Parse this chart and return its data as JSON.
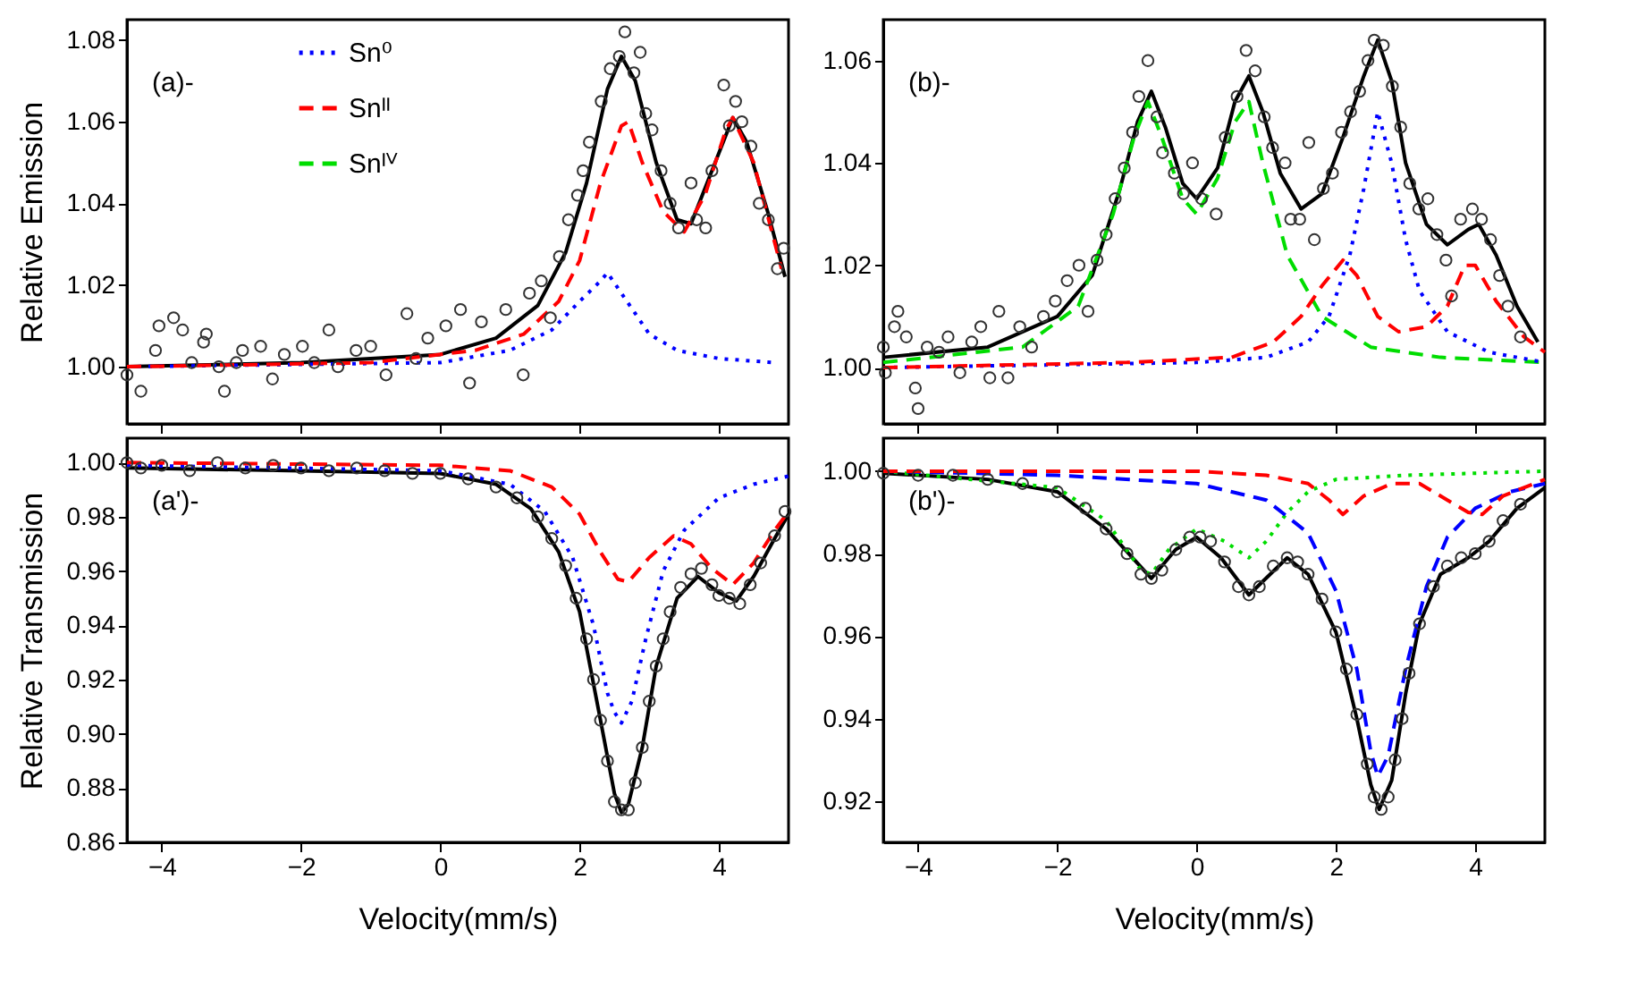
{
  "chart_data": [
    {
      "type": "scatter",
      "annotations": [
        "(a)-"
      ],
      "ylabel": "Relative Emission",
      "xlim": [
        -4.5,
        5
      ],
      "ylim": [
        0.986,
        1.085
      ],
      "xticks": [
        -4,
        -2,
        0,
        2,
        4
      ],
      "yticks": [
        {
          "value": 1,
          "label": "1.00"
        },
        {
          "value": 1.02,
          "label": "1.02"
        },
        {
          "value": 1.04,
          "label": "1.04"
        },
        {
          "value": 1.06,
          "label": "1.06"
        },
        {
          "value": 1.08,
          "label": "1.08"
        }
      ],
      "tick_labels": "y",
      "legend": "top left",
      "series": [
        {
          "marker": "circle",
          "color": "#333333",
          "x": [
            -4.5,
            -4.3,
            -4.09,
            -4.04,
            -3.83,
            -3.7,
            -3.57,
            -3.4,
            -3.36,
            -3.18,
            -3.1,
            -2.93,
            -2.84,
            -2.58,
            -2.41,
            -2.24,
            -1.98,
            -1.81,
            -1.6,
            -1.47,
            -1.21,
            -1.0,
            -0.78,
            -0.48,
            -0.35,
            -0.18,
            0.08,
            0.29,
            0.42,
            0.59,
            0.94,
            1.19,
            1.28,
            1.45,
            1.58,
            1.71,
            1.84,
            1.97,
            2.05,
            2.14,
            2.31,
            2.44,
            2.57,
            2.65,
            2.78,
            2.87,
            2.95,
            3.04,
            3.17,
            3.3,
            3.42,
            3.6,
            3.68,
            3.81,
            3.9,
            4.07,
            4.15,
            4.24,
            4.33,
            4.46,
            4.58,
            4.71,
            4.84,
            4.93
          ],
          "values": [
            0.998,
            0.994,
            1.004,
            1.01,
            1.012,
            1.009,
            1.001,
            1.006,
            1.008,
            1.0,
            0.994,
            1.001,
            1.004,
            1.005,
            0.997,
            1.003,
            1.005,
            1.001,
            1.009,
            1.0,
            1.004,
            1.005,
            0.998,
            1.013,
            1.002,
            1.007,
            1.01,
            1.014,
            0.996,
            1.011,
            1.014,
            0.998,
            1.018,
            1.021,
            1.012,
            1.027,
            1.036,
            1.042,
            1.048,
            1.055,
            1.065,
            1.073,
            1.076,
            1.082,
            1.072,
            1.077,
            1.062,
            1.058,
            1.048,
            1.04,
            1.034,
            1.045,
            1.036,
            1.034,
            1.048,
            1.069,
            1.059,
            1.065,
            1.06,
            1.054,
            1.04,
            1.036,
            1.024,
            1.029
          ]
        },
        {
          "type": "line",
          "color": "#000000",
          "line_style": "solid",
          "x": [
            -4.5,
            -2,
            0,
            0.8,
            1.4,
            1.8,
            2.1,
            2.4,
            2.6,
            2.8,
            3.1,
            3.4,
            3.6,
            3.9,
            4.2,
            4.4,
            4.7,
            4.95
          ],
          "values": [
            1.0,
            1.001,
            1.003,
            1.007,
            1.015,
            1.028,
            1.045,
            1.068,
            1.076,
            1.07,
            1.05,
            1.036,
            1.035,
            1.048,
            1.061,
            1.055,
            1.038,
            1.022
          ]
        },
        {
          "type": "line",
          "name": "Sn⁰",
          "color": "#0000ff",
          "line_style": "dotted",
          "x": [
            -4.5,
            0,
            1.0,
            1.6,
            2.0,
            2.3,
            2.4,
            2.6,
            2.8,
            3.0,
            3.4,
            4.0,
            4.8
          ],
          "values": [
            1.0,
            1.001,
            1.004,
            1.009,
            1.016,
            1.021,
            1.023,
            1.018,
            1.013,
            1.008,
            1.004,
            1.002,
            1.001
          ]
        },
        {
          "type": "line",
          "name": "Snᴵᴵ",
          "color": "#ff0000",
          "line_style": "dashed",
          "x": [
            -4.5,
            -1,
            0.5,
            1.2,
            1.7,
            2.0,
            2.3,
            2.6,
            2.7,
            2.9,
            3.2,
            3.5,
            3.8,
            4.1,
            4.2,
            4.5,
            4.9
          ],
          "values": [
            1.0,
            1.001,
            1.004,
            1.008,
            1.016,
            1.026,
            1.045,
            1.059,
            1.06,
            1.05,
            1.038,
            1.033,
            1.042,
            1.058,
            1.061,
            1.05,
            1.024
          ]
        },
        {
          "type": "line",
          "name": "Snᴵⱽ",
          "color": "#00dd00",
          "line_style": "dashed"
        }
      ]
    },
    {
      "type": "scatter",
      "annotations": [
        "(b)-"
      ],
      "xlim": [
        -4.5,
        5
      ],
      "ylim": [
        0.989,
        1.068
      ],
      "xticks": [
        -4,
        -2,
        0,
        2,
        4
      ],
      "yticks": [
        {
          "value": 1,
          "label": "1.00"
        },
        {
          "value": 1.02,
          "label": "1.02"
        },
        {
          "value": 1.04,
          "label": "1.04"
        },
        {
          "value": 1.06,
          "label": "1.06"
        }
      ],
      "tick_labels": "y",
      "series": [
        {
          "marker": "circle",
          "color": "#333333",
          "x": [
            -4.5,
            -4.47,
            -4.34,
            -4.29,
            -4.17,
            -4.04,
            -4.0,
            -3.87,
            -3.7,
            -3.57,
            -3.4,
            -3.23,
            -3.1,
            -2.97,
            -2.84,
            -2.71,
            -2.54,
            -2.37,
            -2.2,
            -2.03,
            -1.86,
            -1.69,
            -1.56,
            -1.43,
            -1.3,
            -1.17,
            -1.04,
            -0.92,
            -0.83,
            -0.7,
            -0.57,
            -0.49,
            -0.32,
            -0.19,
            -0.06,
            0.07,
            0.28,
            0.41,
            0.58,
            0.71,
            0.84,
            0.97,
            1.09,
            1.27,
            1.35,
            1.48,
            1.61,
            1.69,
            1.82,
            1.95,
            2.08,
            2.21,
            2.34,
            2.46,
            2.55,
            2.68,
            2.81,
            2.93,
            3.06,
            3.19,
            3.32,
            3.45,
            3.58,
            3.66,
            3.79,
            3.96,
            4.09,
            4.22,
            4.35,
            4.47,
            4.65
          ],
          "values": [
            1.004,
            0.999,
            1.008,
            1.011,
            1.006,
            0.996,
            0.992,
            1.004,
            1.003,
            1.006,
            0.999,
            1.005,
            1.008,
            0.998,
            1.011,
            0.998,
            1.008,
            1.004,
            1.01,
            1.013,
            1.017,
            1.02,
            1.011,
            1.021,
            1.026,
            1.033,
            1.039,
            1.046,
            1.053,
            1.06,
            1.049,
            1.042,
            1.038,
            1.034,
            1.04,
            1.033,
            1.03,
            1.045,
            1.053,
            1.062,
            1.058,
            1.049,
            1.043,
            1.04,
            1.029,
            1.029,
            1.044,
            1.025,
            1.035,
            1.038,
            1.046,
            1.05,
            1.054,
            1.06,
            1.064,
            1.063,
            1.055,
            1.047,
            1.036,
            1.031,
            1.033,
            1.026,
            1.021,
            1.014,
            1.029,
            1.031,
            1.029,
            1.025,
            1.018,
            1.012,
            1.006
          ]
        },
        {
          "type": "line",
          "color": "#000000",
          "line_style": "solid",
          "x": [
            -4.5,
            -3,
            -2,
            -1.5,
            -1.1,
            -0.85,
            -0.65,
            -0.45,
            -0.2,
            0.0,
            0.3,
            0.55,
            0.75,
            0.95,
            1.2,
            1.5,
            1.8,
            2.1,
            2.4,
            2.6,
            2.8,
            3.0,
            3.3,
            3.6,
            3.9,
            4.05,
            4.3,
            4.6,
            4.9
          ],
          "values": [
            1.002,
            1.004,
            1.01,
            1.018,
            1.035,
            1.048,
            1.054,
            1.047,
            1.036,
            1.033,
            1.039,
            1.052,
            1.057,
            1.05,
            1.038,
            1.031,
            1.034,
            1.045,
            1.057,
            1.064,
            1.056,
            1.04,
            1.028,
            1.024,
            1.027,
            1.028,
            1.022,
            1.012,
            1.005
          ]
        },
        {
          "type": "line",
          "color": "#00dd00",
          "line_style": "dashed",
          "x": [
            -4.5,
            -2.5,
            -1.7,
            -1.2,
            -0.9,
            -0.7,
            -0.5,
            -0.2,
            0.0,
            0.3,
            0.55,
            0.75,
            0.95,
            1.3,
            1.8,
            2.5,
            3.5,
            5.0
          ],
          "values": [
            1.001,
            1.004,
            1.012,
            1.03,
            1.045,
            1.052,
            1.045,
            1.033,
            1.03,
            1.037,
            1.048,
            1.052,
            1.04,
            1.022,
            1.01,
            1.004,
            1.002,
            1.001
          ]
        },
        {
          "type": "line",
          "color": "#0000ff",
          "line_style": "dotted",
          "x": [
            -4.5,
            0,
            1.0,
            1.6,
            1.9,
            2.2,
            2.4,
            2.6,
            2.8,
            3.0,
            3.2,
            3.6,
            4.2,
            5.0
          ],
          "values": [
            1.0,
            1.001,
            1.002,
            1.005,
            1.01,
            1.022,
            1.035,
            1.05,
            1.04,
            1.025,
            1.015,
            1.007,
            1.003,
            1.001
          ]
        },
        {
          "type": "line",
          "color": "#ff0000",
          "line_style": "dashed",
          "x": [
            -4.5,
            -1,
            0.5,
            1.1,
            1.5,
            1.8,
            2.1,
            2.3,
            2.6,
            2.9,
            3.3,
            3.6,
            3.85,
            4.0,
            4.3,
            4.7,
            5.0
          ],
          "values": [
            1.0,
            1.001,
            1.002,
            1.005,
            1.01,
            1.016,
            1.021,
            1.018,
            1.01,
            1.007,
            1.008,
            1.012,
            1.02,
            1.02,
            1.013,
            1.006,
            1.003
          ]
        }
      ]
    },
    {
      "type": "scatter",
      "annotations": [
        "(a')-"
      ],
      "xlabel": "Velocity(mm/s)",
      "ylabel": "Relative Transmission",
      "xlim": [
        -4.5,
        5
      ],
      "ylim": [
        0.86,
        1.009
      ],
      "xticks": [
        -4,
        -2,
        0,
        2,
        4
      ],
      "yticks": [
        {
          "value": 0.86,
          "label": "0.86"
        },
        {
          "value": 0.88,
          "label": "0.88"
        },
        {
          "value": 0.9,
          "label": "0.90"
        },
        {
          "value": 0.92,
          "label": "0.92"
        },
        {
          "value": 0.94,
          "label": "0.94"
        },
        {
          "value": 0.96,
          "label": "0.96"
        },
        {
          "value": 0.98,
          "label": "0.98"
        },
        {
          "value": 1,
          "label": "1.00"
        }
      ],
      "series": [
        {
          "marker": "circle",
          "color": "#333333",
          "x": [
            -4.5,
            -4.3,
            -4.0,
            -3.6,
            -3.2,
            -2.8,
            -2.4,
            -2.0,
            -1.6,
            -1.2,
            -0.8,
            -0.4,
            0.0,
            0.4,
            0.8,
            1.1,
            1.4,
            1.6,
            1.8,
            1.95,
            2.1,
            2.2,
            2.3,
            2.4,
            2.5,
            2.6,
            2.7,
            2.8,
            2.9,
            3.0,
            3.1,
            3.2,
            3.3,
            3.45,
            3.6,
            3.75,
            3.9,
            4.0,
            4.15,
            4.3,
            4.45,
            4.6,
            4.8,
            4.95
          ],
          "values": [
            1.0,
            0.998,
            0.999,
            0.997,
            1.0,
            0.998,
            0.999,
            0.998,
            0.997,
            0.998,
            0.997,
            0.996,
            0.996,
            0.994,
            0.991,
            0.987,
            0.98,
            0.972,
            0.962,
            0.95,
            0.935,
            0.92,
            0.905,
            0.89,
            0.875,
            0.872,
            0.872,
            0.882,
            0.895,
            0.912,
            0.925,
            0.935,
            0.945,
            0.954,
            0.959,
            0.961,
            0.955,
            0.951,
            0.95,
            0.948,
            0.955,
            0.963,
            0.973,
            0.982
          ]
        },
        {
          "type": "line",
          "color": "#000000",
          "line_style": "solid",
          "x": [
            -4.5,
            -2,
            0,
            0.8,
            1.3,
            1.7,
            2.0,
            2.3,
            2.5,
            2.6,
            2.7,
            2.9,
            3.1,
            3.4,
            3.7,
            4.0,
            4.25,
            4.5,
            4.8,
            5.0
          ],
          "values": [
            0.998,
            0.997,
            0.996,
            0.992,
            0.983,
            0.967,
            0.945,
            0.905,
            0.878,
            0.871,
            0.874,
            0.895,
            0.925,
            0.95,
            0.958,
            0.952,
            0.949,
            0.958,
            0.972,
            0.981
          ]
        },
        {
          "type": "line",
          "color": "#0000ff",
          "line_style": "dotted",
          "x": [
            -4.5,
            0,
            1.0,
            1.5,
            1.9,
            2.2,
            2.4,
            2.5,
            2.6,
            2.75,
            2.95,
            3.2,
            3.5,
            4.0,
            4.5,
            5.0
          ],
          "values": [
            0.999,
            0.997,
            0.992,
            0.982,
            0.965,
            0.94,
            0.915,
            0.908,
            0.904,
            0.912,
            0.935,
            0.96,
            0.975,
            0.987,
            0.992,
            0.995
          ]
        },
        {
          "type": "line",
          "color": "#ff0000",
          "line_style": "dashed",
          "x": [
            -4.5,
            0,
            1.0,
            1.6,
            2.0,
            2.3,
            2.55,
            2.7,
            3.0,
            3.35,
            3.6,
            3.9,
            4.2,
            4.5,
            4.8,
            5.0
          ],
          "values": [
            1.0,
            0.999,
            0.997,
            0.991,
            0.981,
            0.967,
            0.957,
            0.956,
            0.965,
            0.973,
            0.97,
            0.961,
            0.955,
            0.963,
            0.975,
            0.982
          ]
        }
      ]
    },
    {
      "type": "scatter",
      "annotations": [
        "(b')-"
      ],
      "xlabel": "Velocity(mm/s)",
      "xlim": [
        -4.5,
        5
      ],
      "ylim": [
        0.91,
        1.008
      ],
      "xticks": [
        -4,
        -2,
        0,
        2,
        4
      ],
      "yticks": [
        {
          "value": 0.92,
          "label": "0.92"
        },
        {
          "value": 0.94,
          "label": "0.94"
        },
        {
          "value": 0.96,
          "label": "0.96"
        },
        {
          "value": 0.98,
          "label": "0.98"
        },
        {
          "value": 1,
          "label": "1.00"
        }
      ],
      "series": [
        {
          "marker": "circle",
          "color": "#333333",
          "x": [
            -4.5,
            -4.0,
            -3.5,
            -3.0,
            -2.5,
            -2.0,
            -1.6,
            -1.3,
            -1.0,
            -0.8,
            -0.65,
            -0.5,
            -0.3,
            -0.1,
            0.05,
            0.2,
            0.4,
            0.6,
            0.75,
            0.9,
            1.1,
            1.3,
            1.45,
            1.6,
            1.8,
            2.0,
            2.15,
            2.3,
            2.45,
            2.55,
            2.65,
            2.75,
            2.85,
            2.95,
            3.05,
            3.2,
            3.4,
            3.6,
            3.8,
            4.0,
            4.2,
            4.4,
            4.65
          ],
          "values": [
            0.9995,
            0.999,
            0.999,
            0.998,
            0.997,
            0.995,
            0.991,
            0.986,
            0.98,
            0.975,
            0.974,
            0.976,
            0.981,
            0.984,
            0.984,
            0.983,
            0.978,
            0.972,
            0.97,
            0.972,
            0.977,
            0.979,
            0.978,
            0.975,
            0.969,
            0.961,
            0.952,
            0.941,
            0.929,
            0.921,
            0.918,
            0.921,
            0.93,
            0.94,
            0.951,
            0.963,
            0.972,
            0.977,
            0.979,
            0.98,
            0.983,
            0.988,
            0.992
          ]
        },
        {
          "type": "line",
          "color": "#000000",
          "line_style": "solid",
          "x": [
            -4.5,
            -3,
            -2,
            -1.3,
            -0.65,
            -0.3,
            0.0,
            0.35,
            0.75,
            1.3,
            1.6,
            2.0,
            2.3,
            2.5,
            2.62,
            2.8,
            3.0,
            3.2,
            3.5,
            3.9,
            4.2,
            4.6,
            5.0
          ],
          "values": [
            0.9995,
            0.998,
            0.995,
            0.986,
            0.974,
            0.981,
            0.984,
            0.979,
            0.97,
            0.979,
            0.975,
            0.961,
            0.94,
            0.924,
            0.918,
            0.925,
            0.946,
            0.963,
            0.975,
            0.979,
            0.983,
            0.991,
            0.996
          ]
        },
        {
          "type": "line",
          "color": "#00dd00",
          "line_style": "dotted",
          "x": [
            -4.5,
            -2,
            -1.3,
            -0.8,
            -0.65,
            -0.4,
            0.0,
            0.4,
            0.75,
            1.0,
            1.3,
            1.6,
            2.0,
            3.0,
            5.0
          ],
          "values": [
            1.0,
            0.996,
            0.988,
            0.976,
            0.975,
            0.981,
            0.986,
            0.983,
            0.979,
            0.983,
            0.99,
            0.995,
            0.998,
            0.999,
            1.0
          ]
        },
        {
          "type": "line",
          "color": "#0000ff",
          "line_style": "dashed",
          "x": [
            -4.5,
            -2,
            0,
            1.0,
            1.6,
            2.0,
            2.3,
            2.5,
            2.6,
            2.75,
            3.0,
            3.3,
            3.6,
            4.0,
            4.5,
            5.0
          ],
          "values": [
            1.0,
            0.999,
            0.997,
            0.993,
            0.985,
            0.971,
            0.952,
            0.932,
            0.926,
            0.931,
            0.952,
            0.972,
            0.984,
            0.991,
            0.995,
            0.997
          ]
        },
        {
          "type": "line",
          "color": "#ff0000",
          "line_style": "dashed",
          "x": [
            -4.5,
            0,
            1.0,
            1.6,
            1.9,
            2.1,
            2.4,
            2.8,
            3.2,
            3.6,
            3.9,
            4.1,
            4.4,
            5.0
          ],
          "values": [
            1.0,
            1.0,
            0.999,
            0.997,
            0.993,
            0.9895,
            0.994,
            0.997,
            0.997,
            0.993,
            0.99,
            0.9895,
            0.994,
            0.998
          ]
        }
      ]
    }
  ]
}
